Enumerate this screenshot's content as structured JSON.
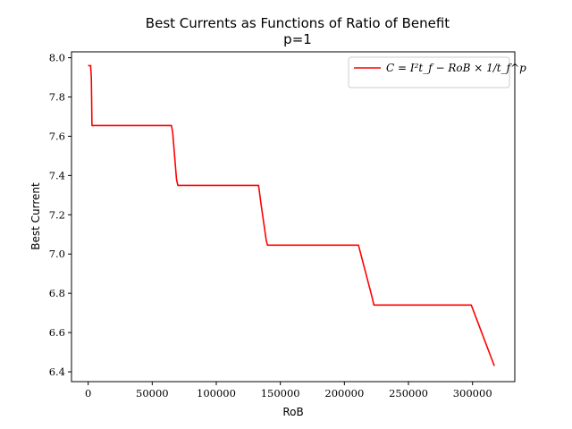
{
  "chart_data": {
    "type": "line",
    "title": "Best Currents as Functions of Ratio of Benefit",
    "subtitle": "p=1",
    "xlabel": "RoB",
    "ylabel": "Best Current",
    "xlim": [
      -13000,
      333000
    ],
    "ylim": [
      6.35,
      8.03
    ],
    "xticks": [
      0,
      50000,
      100000,
      150000,
      200000,
      250000,
      300000
    ],
    "xtick_labels": [
      "0",
      "50000",
      "100000",
      "150000",
      "200000",
      "250000",
      "300000"
    ],
    "yticks": [
      6.4,
      6.6,
      6.8,
      7.0,
      7.2,
      7.4,
      7.6,
      7.8,
      8.0
    ],
    "ytick_labels": [
      "6.4",
      "6.6",
      "6.8",
      "7.0",
      "7.2",
      "7.4",
      "7.6",
      "7.8",
      "8.0"
    ],
    "grid": false,
    "legend_position": "top-right",
    "series": [
      {
        "name": "C = I²t_f − RoB × 1/t_f^p",
        "color": "#ff0000",
        "x": [
          0,
          2000,
          2000,
          2500,
          3000,
          65000,
          66000,
          69000,
          70000,
          133000,
          135000,
          139000,
          140000,
          211000,
          214000,
          222000,
          223000,
          299000,
          317000
        ],
        "y": [
          7.96,
          7.96,
          7.95,
          7.9,
          7.655,
          7.655,
          7.62,
          7.38,
          7.35,
          7.35,
          7.25,
          7.07,
          7.045,
          7.045,
          6.97,
          6.77,
          6.74,
          6.74,
          6.43
        ]
      }
    ]
  }
}
